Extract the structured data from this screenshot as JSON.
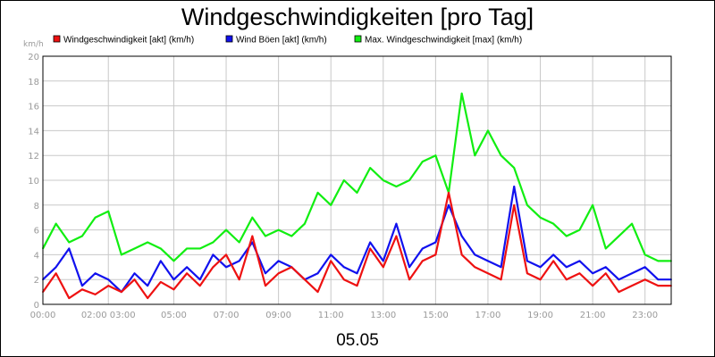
{
  "chart_data": {
    "type": "line",
    "title": "Windgeschwindigkeiten [pro Tag]",
    "ylabel": "km/h",
    "xlabel": "05.05",
    "ylim": [
      0,
      20
    ],
    "y_ticks": [
      "0",
      "2",
      "4",
      "6",
      "8",
      "10",
      "12",
      "14",
      "16",
      "18",
      "20"
    ],
    "x_tick_labels": [
      "00:00",
      "02:00 03:00",
      "05:00",
      "07:00",
      "09:00",
      "11:00",
      "13:00",
      "15:00",
      "17:00",
      "19:00",
      "21:00",
      "23:00"
    ],
    "x_tick_hours": [
      0,
      2.5,
      5,
      7,
      9,
      11,
      13,
      15,
      17,
      19,
      21,
      23
    ],
    "xlim_hours": [
      0,
      24
    ],
    "grid": true,
    "legend_position": "top",
    "series": [
      {
        "name": "Windgeschwindigkeit [akt] (km/h)",
        "color": "#ee1111",
        "x_hours": [
          0,
          0.5,
          1,
          1.5,
          2,
          2.5,
          3,
          3.5,
          4,
          4.5,
          5,
          5.5,
          6,
          6.5,
          7,
          7.5,
          8,
          8.5,
          9,
          9.5,
          10,
          10.5,
          11,
          11.5,
          12,
          12.5,
          13,
          13.5,
          14,
          14.5,
          15,
          15.5,
          16,
          16.5,
          17,
          17.5,
          18,
          18.5,
          19,
          19.5,
          20,
          20.5,
          21,
          21.5,
          22,
          22.5,
          23,
          23.5,
          24
        ],
        "values": [
          1.0,
          2.5,
          0.5,
          1.2,
          0.8,
          1.5,
          1.0,
          2.0,
          0.5,
          1.8,
          1.2,
          2.5,
          1.5,
          3.0,
          4.0,
          2.0,
          5.5,
          1.5,
          2.5,
          3.0,
          2.0,
          1.0,
          3.5,
          2.0,
          1.5,
          4.5,
          3.0,
          5.5,
          2.0,
          3.5,
          4.0,
          9.0,
          4.0,
          3.0,
          2.5,
          2.0,
          8.0,
          2.5,
          2.0,
          3.5,
          2.0,
          2.5,
          1.5,
          2.5,
          1.0,
          1.5,
          2.0,
          1.5,
          1.5
        ]
      },
      {
        "name": "Wind Böen [akt] (km/h)",
        "color": "#1111ee",
        "x_hours": [
          0,
          0.5,
          1,
          1.5,
          2,
          2.5,
          3,
          3.5,
          4,
          4.5,
          5,
          5.5,
          6,
          6.5,
          7,
          7.5,
          8,
          8.5,
          9,
          9.5,
          10,
          10.5,
          11,
          11.5,
          12,
          12.5,
          13,
          13.5,
          14,
          14.5,
          15,
          15.5,
          16,
          16.5,
          17,
          17.5,
          18,
          18.5,
          19,
          19.5,
          20,
          20.5,
          21,
          21.5,
          22,
          22.5,
          23,
          23.5,
          24
        ],
        "values": [
          2.0,
          3.0,
          4.5,
          1.5,
          2.5,
          2.0,
          1.0,
          2.5,
          1.5,
          3.5,
          2.0,
          3.0,
          2.0,
          4.0,
          3.0,
          3.5,
          5.0,
          2.5,
          3.5,
          3.0,
          2.0,
          2.5,
          4.0,
          3.0,
          2.5,
          5.0,
          3.5,
          6.5,
          3.0,
          4.5,
          5.0,
          8.0,
          5.5,
          4.0,
          3.5,
          3.0,
          9.5,
          3.5,
          3.0,
          4.0,
          3.0,
          3.5,
          2.5,
          3.0,
          2.0,
          2.5,
          3.0,
          2.0,
          2.0
        ]
      },
      {
        "name": "Max. Windgeschwindigkeit [max] (km/h)",
        "color": "#11ee11",
        "x_hours": [
          0,
          0.5,
          1,
          1.5,
          2,
          2.5,
          3,
          3.5,
          4,
          4.5,
          5,
          5.5,
          6,
          6.5,
          7,
          7.5,
          8,
          8.5,
          9,
          9.5,
          10,
          10.5,
          11,
          11.5,
          12,
          12.5,
          13,
          13.5,
          14,
          14.5,
          15,
          15.5,
          16,
          16.5,
          17,
          17.5,
          18,
          18.5,
          19,
          19.5,
          20,
          20.5,
          21,
          21.5,
          22,
          22.5,
          23,
          23.5,
          24
        ],
        "values": [
          4.5,
          6.5,
          5.0,
          5.5,
          7.0,
          7.5,
          4.0,
          4.5,
          5.0,
          4.5,
          3.5,
          4.5,
          4.5,
          5.0,
          6.0,
          5.0,
          7.0,
          5.5,
          6.0,
          5.5,
          6.5,
          9.0,
          8.0,
          10.0,
          9.0,
          11.0,
          10.0,
          9.5,
          10.0,
          11.5,
          12.0,
          9.0,
          17.0,
          12.0,
          14.0,
          12.0,
          11.0,
          8.0,
          7.0,
          6.5,
          5.5,
          6.0,
          8.0,
          4.5,
          5.5,
          6.5,
          4.0,
          3.5,
          3.5
        ]
      }
    ]
  }
}
